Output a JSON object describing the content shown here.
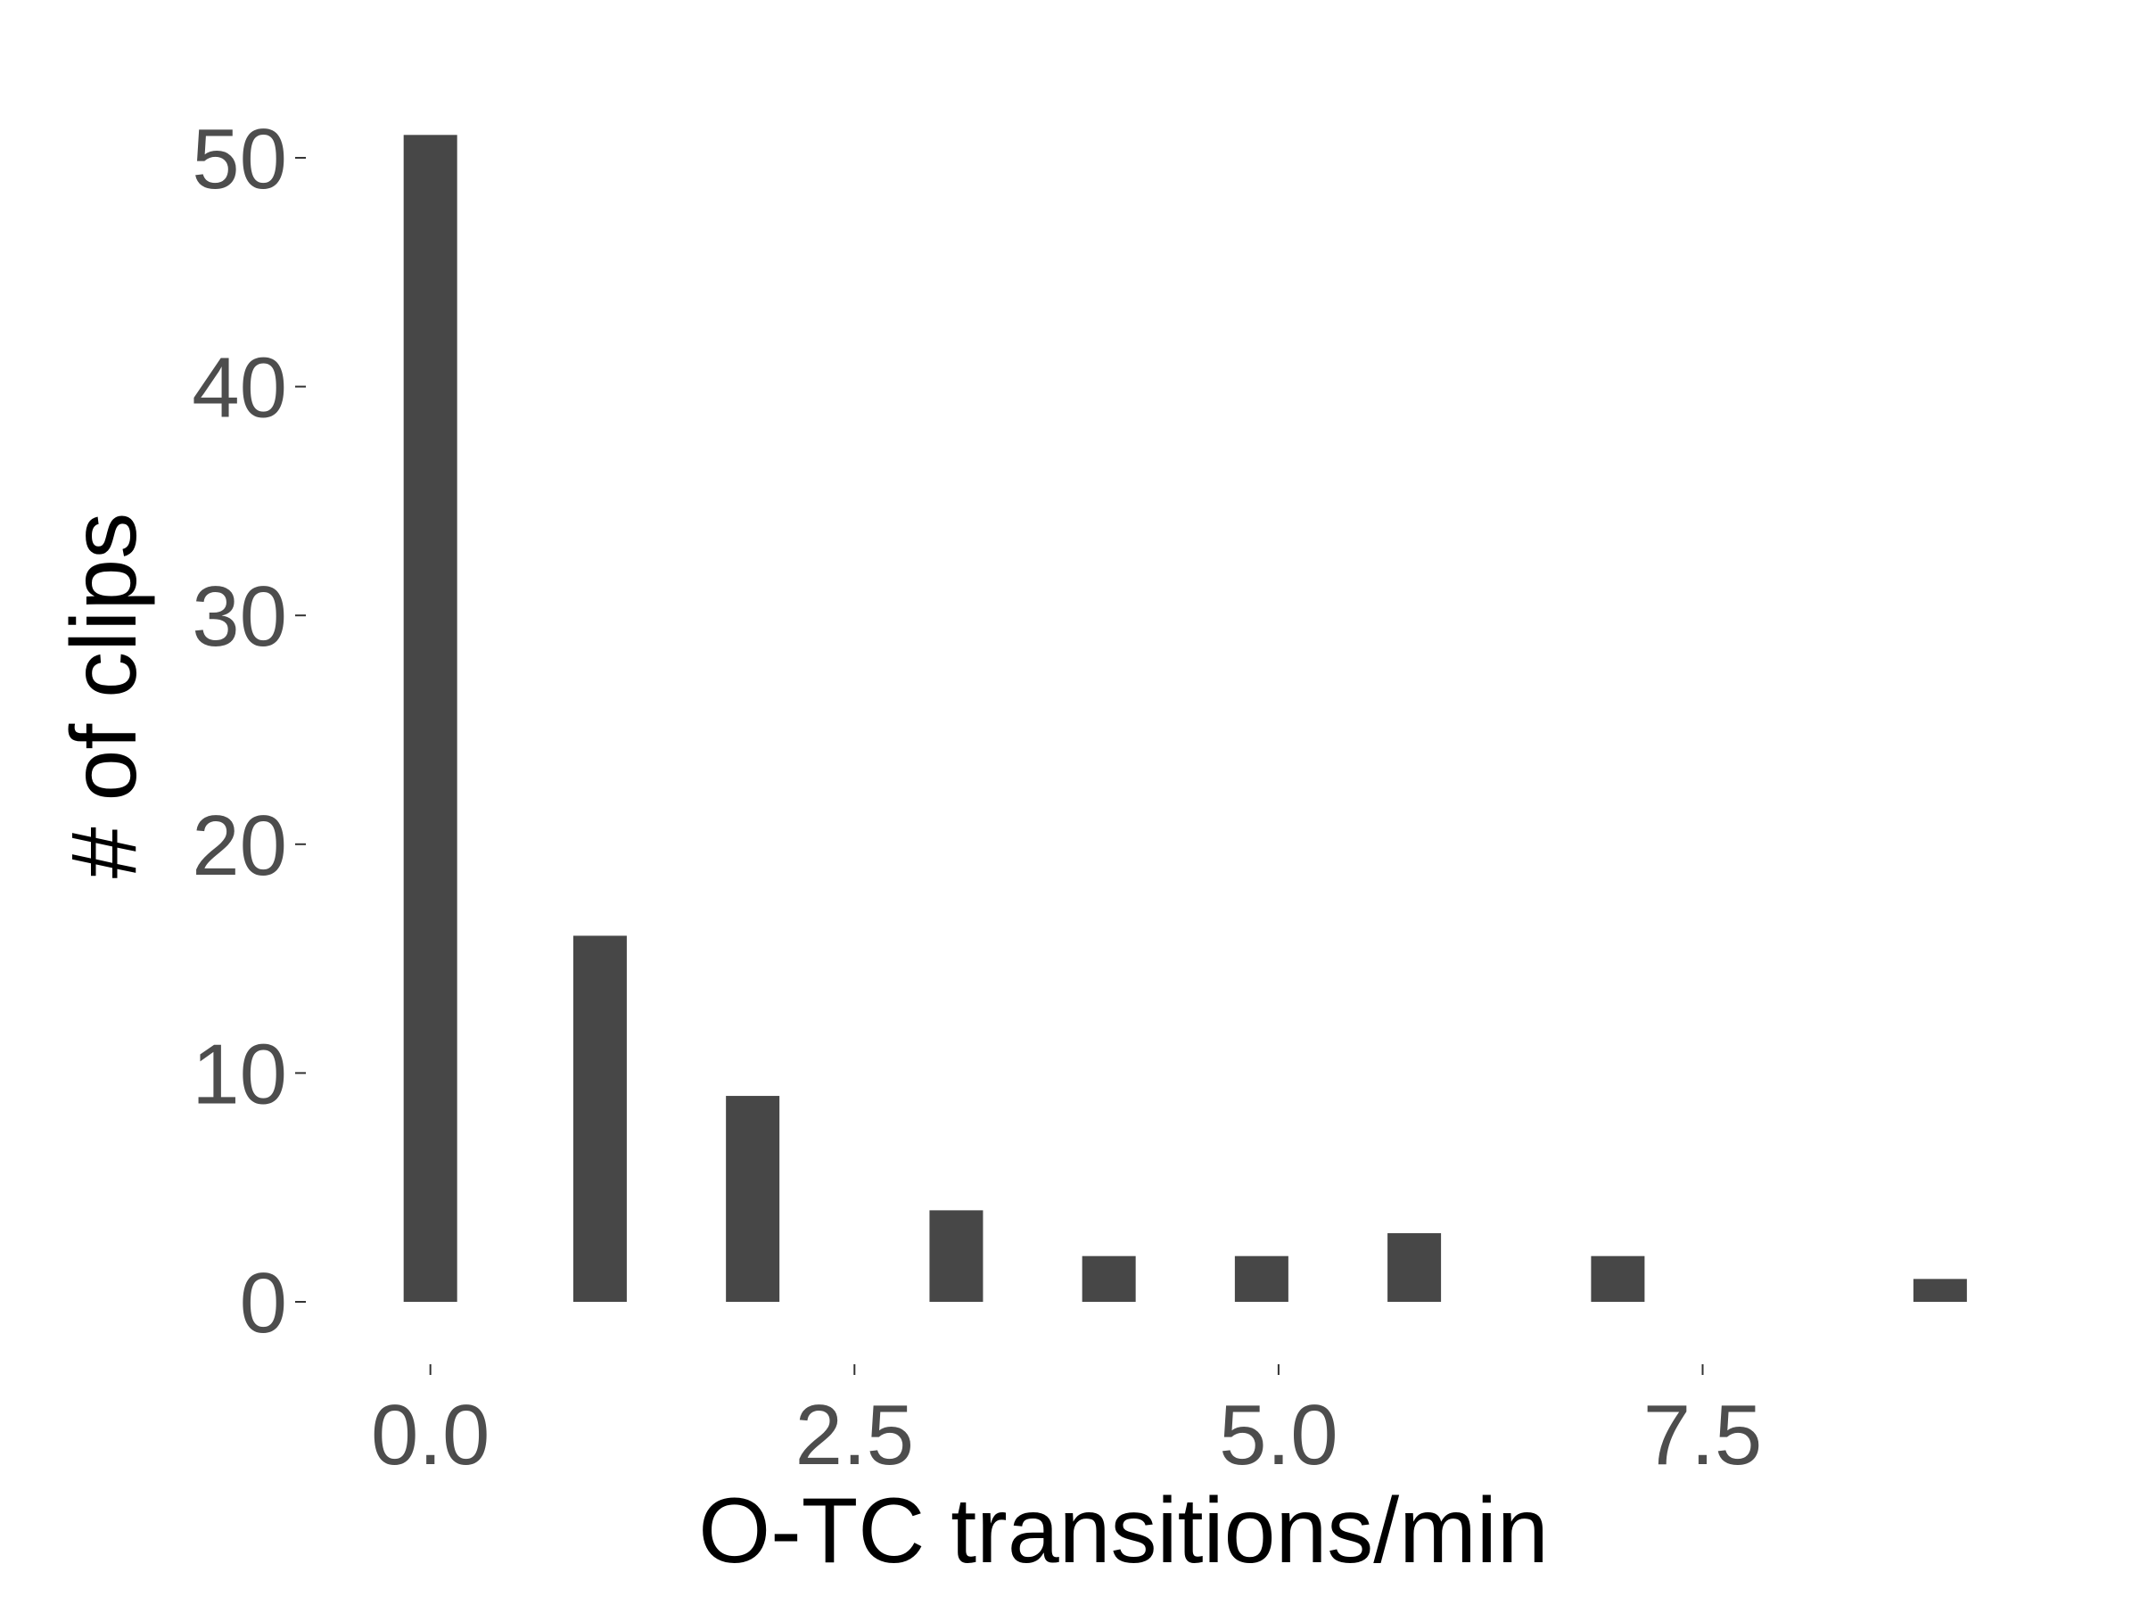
{
  "chart_data": {
    "type": "bar",
    "title": "",
    "xlabel": "O-TC transitions/min",
    "ylabel": "# of clips",
    "x": [
      0.0,
      1.0,
      1.9,
      3.1,
      4.0,
      4.9,
      5.8,
      7.0,
      8.9
    ],
    "values": [
      51,
      16,
      9,
      4,
      2,
      2,
      3,
      2,
      1
    ],
    "xticks": [
      0.0,
      2.5,
      5.0,
      7.5
    ],
    "xtick_labels": [
      "0.0",
      "2.5",
      "5.0",
      "7.5"
    ],
    "yticks": [
      0,
      10,
      20,
      30,
      40,
      50
    ],
    "ytick_labels": [
      "0",
      "10",
      "20",
      "30",
      "40",
      "50"
    ],
    "xlim": [
      -0.75,
      9.5
    ],
    "ylim": [
      0,
      53
    ],
    "grid": false,
    "legend": "none",
    "bar_color": "#474747"
  }
}
